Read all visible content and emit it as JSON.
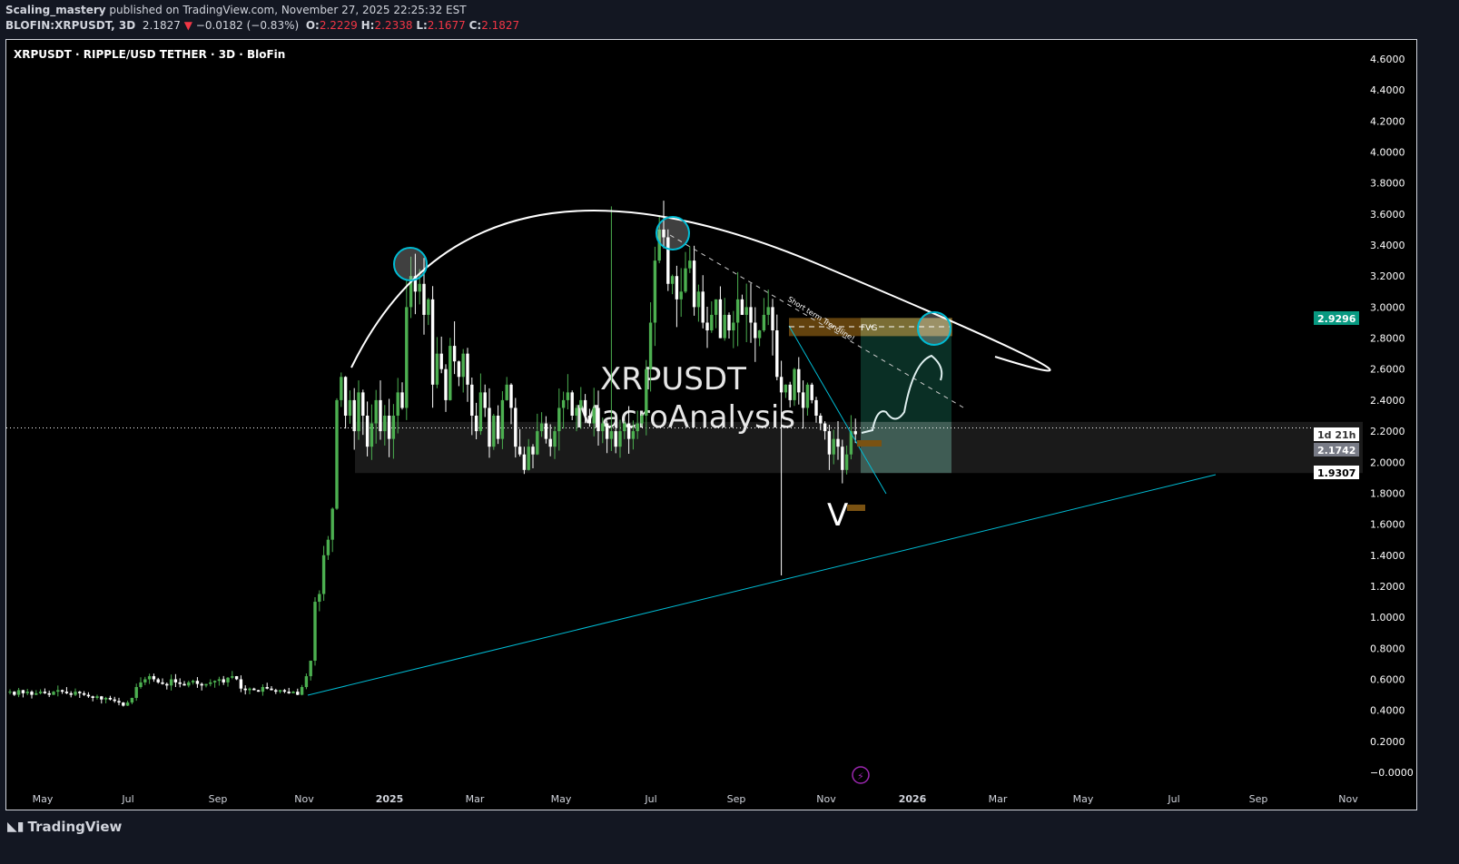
{
  "header": {
    "author": "Scaling_mastery",
    "published": "published on TradingView.com, November 27, 2025 22:25:32 EST",
    "symbol": "BLOFIN:XRPUSDT, 3D",
    "last": "2.1827",
    "change": "−0.0182 (−0.83%)",
    "o_label": "O:",
    "o": "2.2229",
    "h_label": "H:",
    "h": "2.2338",
    "l_label": "L:",
    "l": "2.1677",
    "c_label": "C:",
    "c": "2.1827"
  },
  "colors": {
    "up": "#4caf50",
    "down": "#ffffff",
    "accent": "#00bcd4",
    "fvg": "#7a5212",
    "target": "#0d3b2e",
    "price_tag": "#089981"
  },
  "chart_data": {
    "type": "candlestick",
    "title": "XRPUSDT · RIPPLE/USD TETHER · 3D · BloFin",
    "watermark": [
      "XRPUSDT",
      "MacroAnalysis"
    ],
    "y_ticks": [
      "4.6000",
      "4.4000",
      "4.2000",
      "4.0000",
      "3.8000",
      "3.6000",
      "3.4000",
      "3.2000",
      "3.0000",
      "2.8000",
      "2.6000",
      "2.4000",
      "2.2000",
      "2.0000",
      "1.8000",
      "1.6000",
      "1.4000",
      "1.2000",
      "1.0000",
      "0.8000",
      "0.6000",
      "0.4000",
      "0.2000",
      "−0.0000"
    ],
    "ylim": [
      0,
      4.6
    ],
    "x_ticks": [
      "May",
      "Jul",
      "Sep",
      "Nov",
      "2025",
      "Mar",
      "May",
      "Jul",
      "Sep",
      "Nov",
      "2026",
      "Mar",
      "May",
      "Jul",
      "Sep",
      "Nov"
    ],
    "closes": [
      0.52,
      0.5,
      0.53,
      0.51,
      0.52,
      0.5,
      0.51,
      0.52,
      0.51,
      0.5,
      0.52,
      0.53,
      0.52,
      0.51,
      0.5,
      0.52,
      0.51,
      0.5,
      0.49,
      0.48,
      0.49,
      0.47,
      0.48,
      0.47,
      0.46,
      0.45,
      0.43,
      0.45,
      0.48,
      0.55,
      0.58,
      0.6,
      0.62,
      0.6,
      0.58,
      0.57,
      0.56,
      0.6,
      0.58,
      0.57,
      0.56,
      0.58,
      0.59,
      0.57,
      0.56,
      0.57,
      0.58,
      0.59,
      0.6,
      0.58,
      0.61,
      0.62,
      0.6,
      0.54,
      0.53,
      0.54,
      0.53,
      0.52,
      0.55,
      0.54,
      0.53,
      0.52,
      0.53,
      0.52,
      0.51,
      0.52,
      0.5,
      0.55,
      0.62,
      0.72,
      1.1,
      1.15,
      1.4,
      1.5,
      1.7,
      2.4,
      2.55,
      2.3,
      2.4,
      2.2,
      2.45,
      2.3,
      2.1,
      2.25,
      2.4,
      2.2,
      2.3,
      2.15,
      2.3,
      2.45,
      2.35,
      3.0,
      3.2,
      3.1,
      3.15,
      2.95,
      3.05,
      2.5,
      2.7,
      2.6,
      2.4,
      2.75,
      2.65,
      2.55,
      2.7,
      2.5,
      2.3,
      2.2,
      2.45,
      2.35,
      2.1,
      2.3,
      2.15,
      2.4,
      2.5,
      2.35,
      2.1,
      2.05,
      1.95,
      2.1,
      2.05,
      2.2,
      2.25,
      2.15,
      2.1,
      2.2,
      2.35,
      2.4,
      2.45,
      2.3,
      2.35,
      2.4,
      2.3,
      2.25,
      2.35,
      2.2,
      2.25,
      2.15,
      2.2,
      2.1,
      2.2,
      2.25,
      2.15,
      2.2,
      2.25,
      2.3,
      2.6,
      2.9,
      3.3,
      3.5,
      3.45,
      3.15,
      3.2,
      3.05,
      3.1,
      3.25,
      3.3,
      3.0,
      3.1,
      2.9,
      2.85,
      2.95,
      3.05,
      2.8,
      2.95,
      2.85,
      2.9,
      3.05,
      2.95,
      3.0,
      2.9,
      2.8,
      2.85,
      2.95,
      3.0,
      2.85,
      2.55,
      2.45,
      2.5,
      2.4,
      2.6,
      2.45,
      2.35,
      2.5,
      2.4,
      2.3,
      2.25,
      2.2,
      2.05,
      2.15,
      2.1,
      1.95,
      2.05,
      2.2,
      2.18
    ],
    "notable_wicks": {
      "high": 3.65,
      "low": 1.27
    },
    "annotations": {
      "trendline_label": "Short term Trendline!",
      "fvg_label": "FVG",
      "pattern_letter": "V"
    },
    "price_tags": {
      "target": "2.9296",
      "countdown": "1d 21h",
      "current": "2.1742",
      "stop": "1.9307"
    },
    "target_price": 2.9296,
    "current_price": 2.1742,
    "stop_price": 1.9307,
    "grid": false
  },
  "footer": {
    "brand": "TradingView"
  }
}
